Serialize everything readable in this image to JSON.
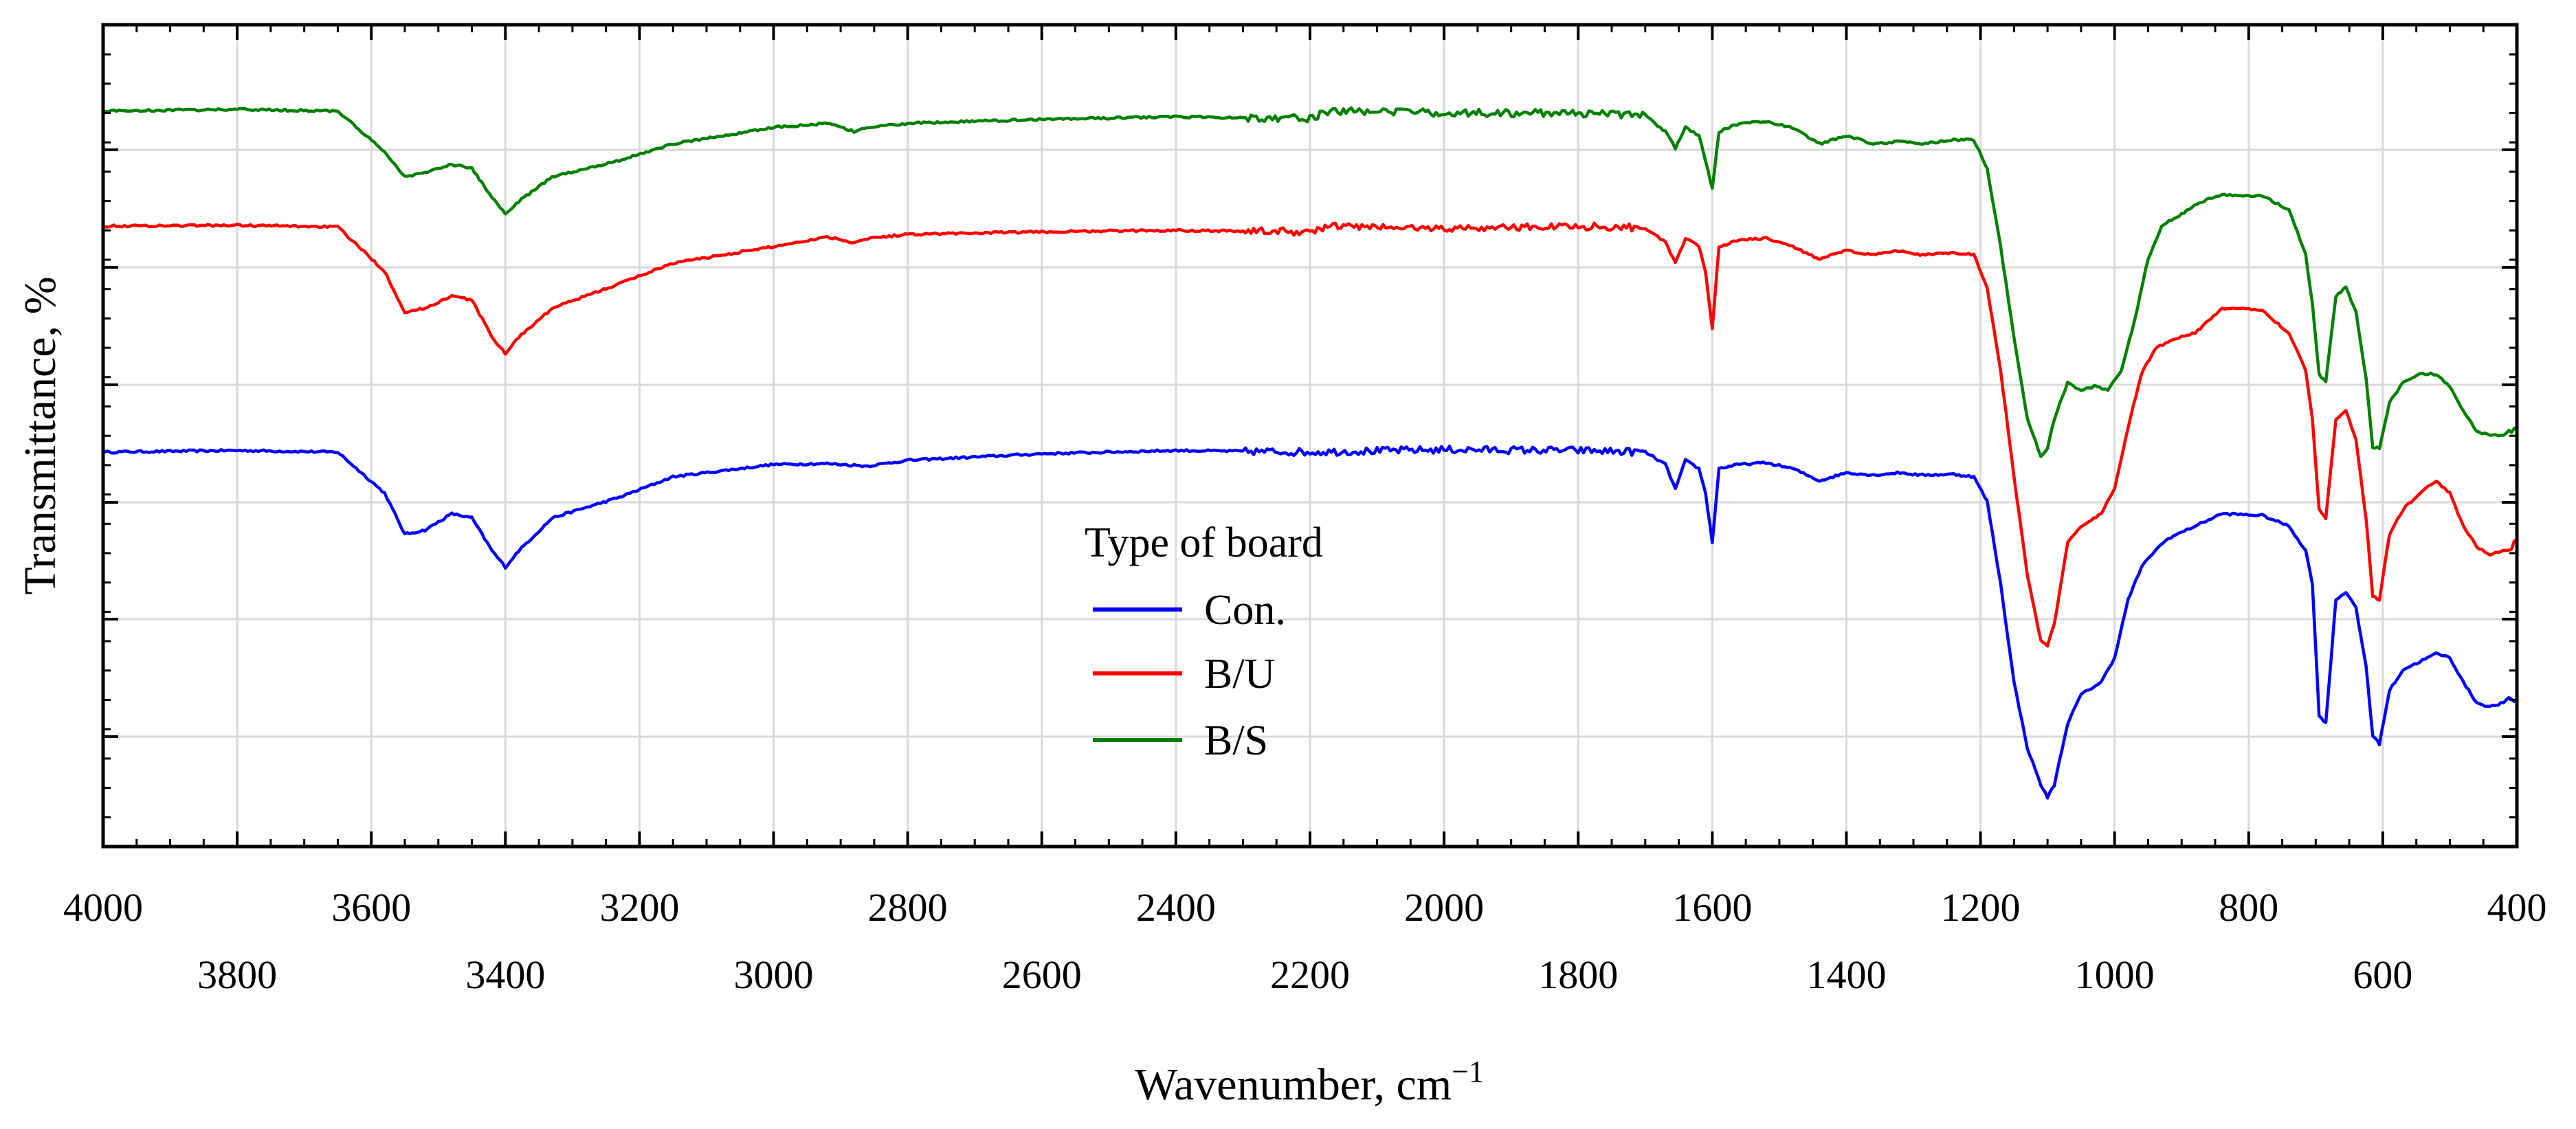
{
  "chart_data": {
    "type": "line",
    "title": "",
    "xlabel": "Wavenumber, cm",
    "xlabel_superscript": "−1",
    "ylabel": "Transmittance, %",
    "xlim": [
      4000,
      400
    ],
    "ylim": [
      0,
      100
    ],
    "x_reversed": true,
    "grid": true,
    "x_ticks_major_top_row": [
      "4000",
      "3600",
      "3200",
      "2800",
      "2400",
      "2000",
      "1600",
      "1200",
      "800",
      "400"
    ],
    "x_ticks_major_bottom_row": [
      "3800",
      "3400",
      "3000",
      "2600",
      "2200",
      "1800",
      "1400",
      "1000",
      "600"
    ],
    "y_tick_labels": [],
    "legend": {
      "title": "Type of board",
      "placement": "center",
      "entries": [
        {
          "name": "Con.",
          "color": "#0000ff"
        },
        {
          "name": "B/U",
          "color": "#ff0000"
        },
        {
          "name": "B/S",
          "color": "#008000"
        }
      ]
    },
    "series": [
      {
        "name": "Con.",
        "color": "#0000ff",
        "points": [
          [
            4000,
            48.0
          ],
          [
            3800,
            48.2
          ],
          [
            3650,
            48.0
          ],
          [
            3580,
            43.0
          ],
          [
            3550,
            38.0
          ],
          [
            3520,
            38.5
          ],
          [
            3480,
            40.5
          ],
          [
            3450,
            40.0
          ],
          [
            3420,
            36.0
          ],
          [
            3400,
            34.0
          ],
          [
            3380,
            36.0
          ],
          [
            3330,
            40.0
          ],
          [
            3230,
            42.5
          ],
          [
            3150,
            45.0
          ],
          [
            3000,
            46.5
          ],
          [
            2920,
            46.6
          ],
          [
            2860,
            46.3
          ],
          [
            2800,
            47.0
          ],
          [
            2600,
            47.8
          ],
          [
            2400,
            48.2
          ],
          [
            2200,
            48.0
          ],
          [
            2000,
            48.3
          ],
          [
            1800,
            48.2
          ],
          [
            1700,
            48.0
          ],
          [
            1670,
            46.5
          ],
          [
            1655,
            43.5
          ],
          [
            1640,
            47.0
          ],
          [
            1620,
            46.0
          ],
          [
            1610,
            43.0
          ],
          [
            1600,
            37.0
          ],
          [
            1590,
            46.0
          ],
          [
            1560,
            46.5
          ],
          [
            1520,
            46.7
          ],
          [
            1480,
            46.0
          ],
          [
            1440,
            44.5
          ],
          [
            1400,
            45.5
          ],
          [
            1360,
            45.2
          ],
          [
            1320,
            45.5
          ],
          [
            1290,
            45.2
          ],
          [
            1240,
            45.3
          ],
          [
            1210,
            45.0
          ],
          [
            1190,
            42.0
          ],
          [
            1170,
            32.0
          ],
          [
            1150,
            20.0
          ],
          [
            1130,
            12.0
          ],
          [
            1110,
            7.5
          ],
          [
            1100,
            6.0
          ],
          [
            1090,
            7.5
          ],
          [
            1070,
            15.0
          ],
          [
            1050,
            18.5
          ],
          [
            1020,
            20.0
          ],
          [
            1000,
            23.0
          ],
          [
            980,
            30.0
          ],
          [
            960,
            34.0
          ],
          [
            940,
            36.0
          ],
          [
            920,
            37.5
          ],
          [
            880,
            39.0
          ],
          [
            840,
            40.5
          ],
          [
            780,
            40.3
          ],
          [
            740,
            39.0
          ],
          [
            715,
            36.0
          ],
          [
            705,
            32.0
          ],
          [
            695,
            16.0
          ],
          [
            685,
            15.0
          ],
          [
            670,
            30.0
          ],
          [
            655,
            31.0
          ],
          [
            640,
            29.0
          ],
          [
            625,
            22.0
          ],
          [
            615,
            13.5
          ],
          [
            605,
            12.5
          ],
          [
            590,
            19.0
          ],
          [
            570,
            21.5
          ],
          [
            545,
            22.5
          ],
          [
            520,
            23.5
          ],
          [
            500,
            23.0
          ],
          [
            480,
            20.0
          ],
          [
            460,
            17.5
          ],
          [
            440,
            17.0
          ],
          [
            420,
            17.5
          ],
          [
            400,
            18.0
          ]
        ]
      },
      {
        "name": "B/U",
        "color": "#ff0000",
        "points": [
          [
            4000,
            75.5
          ],
          [
            3800,
            75.6
          ],
          [
            3650,
            75.4
          ],
          [
            3580,
            70.0
          ],
          [
            3550,
            65.0
          ],
          [
            3520,
            65.5
          ],
          [
            3480,
            67.0
          ],
          [
            3450,
            66.5
          ],
          [
            3420,
            62.0
          ],
          [
            3400,
            60.0
          ],
          [
            3380,
            62.0
          ],
          [
            3330,
            65.5
          ],
          [
            3230,
            68.5
          ],
          [
            3150,
            71.0
          ],
          [
            3000,
            73.0
          ],
          [
            2920,
            74.2
          ],
          [
            2880,
            73.5
          ],
          [
            2860,
            74.0
          ],
          [
            2800,
            74.5
          ],
          [
            2600,
            74.8
          ],
          [
            2400,
            75.0
          ],
          [
            2200,
            74.8
          ],
          [
            2170,
            75.5
          ],
          [
            2000,
            75.2
          ],
          [
            1800,
            75.5
          ],
          [
            1700,
            75.3
          ],
          [
            1670,
            73.5
          ],
          [
            1655,
            71.0
          ],
          [
            1640,
            74.0
          ],
          [
            1620,
            73.0
          ],
          [
            1610,
            70.0
          ],
          [
            1600,
            63.0
          ],
          [
            1590,
            73.0
          ],
          [
            1560,
            73.8
          ],
          [
            1520,
            74.0
          ],
          [
            1480,
            73.0
          ],
          [
            1440,
            71.5
          ],
          [
            1400,
            72.5
          ],
          [
            1360,
            72.0
          ],
          [
            1320,
            72.5
          ],
          [
            1290,
            72.0
          ],
          [
            1240,
            72.3
          ],
          [
            1210,
            72.0
          ],
          [
            1190,
            68.0
          ],
          [
            1170,
            58.0
          ],
          [
            1150,
            45.0
          ],
          [
            1130,
            33.0
          ],
          [
            1110,
            25.0
          ],
          [
            1100,
            24.5
          ],
          [
            1090,
            27.0
          ],
          [
            1070,
            37.0
          ],
          [
            1050,
            39.0
          ],
          [
            1020,
            40.5
          ],
          [
            1000,
            43.5
          ],
          [
            980,
            51.0
          ],
          [
            960,
            57.5
          ],
          [
            940,
            60.5
          ],
          [
            920,
            61.5
          ],
          [
            880,
            62.5
          ],
          [
            840,
            65.5
          ],
          [
            780,
            65.3
          ],
          [
            740,
            62.5
          ],
          [
            715,
            58.0
          ],
          [
            705,
            52.0
          ],
          [
            695,
            41.0
          ],
          [
            685,
            40.0
          ],
          [
            670,
            52.0
          ],
          [
            655,
            53.0
          ],
          [
            640,
            49.5
          ],
          [
            625,
            40.0
          ],
          [
            615,
            30.5
          ],
          [
            605,
            30.0
          ],
          [
            590,
            38.0
          ],
          [
            570,
            41.0
          ],
          [
            545,
            43.0
          ],
          [
            520,
            44.5
          ],
          [
            500,
            43.0
          ],
          [
            480,
            39.0
          ],
          [
            460,
            36.5
          ],
          [
            440,
            35.5
          ],
          [
            420,
            36.0
          ],
          [
            400,
            37.0
          ]
        ]
      },
      {
        "name": "B/S",
        "color": "#008000",
        "points": [
          [
            4000,
            89.5
          ],
          [
            3800,
            89.7
          ],
          [
            3650,
            89.5
          ],
          [
            3580,
            84.5
          ],
          [
            3550,
            81.5
          ],
          [
            3520,
            82.0
          ],
          [
            3480,
            83.0
          ],
          [
            3450,
            82.5
          ],
          [
            3420,
            79.0
          ],
          [
            3400,
            77.0
          ],
          [
            3380,
            78.5
          ],
          [
            3330,
            81.5
          ],
          [
            3230,
            83.5
          ],
          [
            3150,
            85.5
          ],
          [
            3000,
            87.5
          ],
          [
            2920,
            88.0
          ],
          [
            2880,
            87.0
          ],
          [
            2860,
            87.5
          ],
          [
            2800,
            88.0
          ],
          [
            2600,
            88.5
          ],
          [
            2400,
            88.8
          ],
          [
            2200,
            88.6
          ],
          [
            2170,
            89.5
          ],
          [
            2000,
            89.3
          ],
          [
            1800,
            89.2
          ],
          [
            1700,
            89.0
          ],
          [
            1670,
            87.0
          ],
          [
            1655,
            85.0
          ],
          [
            1640,
            87.5
          ],
          [
            1620,
            86.5
          ],
          [
            1610,
            83.5
          ],
          [
            1600,
            80.0
          ],
          [
            1590,
            87.0
          ],
          [
            1560,
            88.0
          ],
          [
            1520,
            88.2
          ],
          [
            1480,
            87.5
          ],
          [
            1440,
            85.5
          ],
          [
            1400,
            86.5
          ],
          [
            1360,
            85.5
          ],
          [
            1320,
            85.8
          ],
          [
            1290,
            85.5
          ],
          [
            1240,
            86.0
          ],
          [
            1210,
            86.0
          ],
          [
            1190,
            82.5
          ],
          [
            1170,
            73.0
          ],
          [
            1150,
            62.0
          ],
          [
            1130,
            52.0
          ],
          [
            1110,
            47.5
          ],
          [
            1100,
            48.5
          ],
          [
            1090,
            52.0
          ],
          [
            1070,
            56.5
          ],
          [
            1050,
            55.5
          ],
          [
            1030,
            56.0
          ],
          [
            1010,
            55.5
          ],
          [
            990,
            58.0
          ],
          [
            970,
            64.0
          ],
          [
            950,
            71.5
          ],
          [
            930,
            75.5
          ],
          [
            900,
            77.0
          ],
          [
            870,
            78.5
          ],
          [
            840,
            79.3
          ],
          [
            780,
            79.2
          ],
          [
            740,
            77.5
          ],
          [
            715,
            72.0
          ],
          [
            705,
            66.0
          ],
          [
            695,
            57.5
          ],
          [
            685,
            56.5
          ],
          [
            670,
            67.0
          ],
          [
            655,
            68.0
          ],
          [
            640,
            65.0
          ],
          [
            625,
            57.0
          ],
          [
            615,
            48.5
          ],
          [
            605,
            48.5
          ],
          [
            590,
            54.0
          ],
          [
            570,
            56.5
          ],
          [
            545,
            57.5
          ],
          [
            520,
            57.5
          ],
          [
            500,
            56.0
          ],
          [
            480,
            53.0
          ],
          [
            460,
            50.5
          ],
          [
            440,
            50.0
          ],
          [
            420,
            50.0
          ],
          [
            400,
            51.0
          ]
        ]
      }
    ]
  }
}
